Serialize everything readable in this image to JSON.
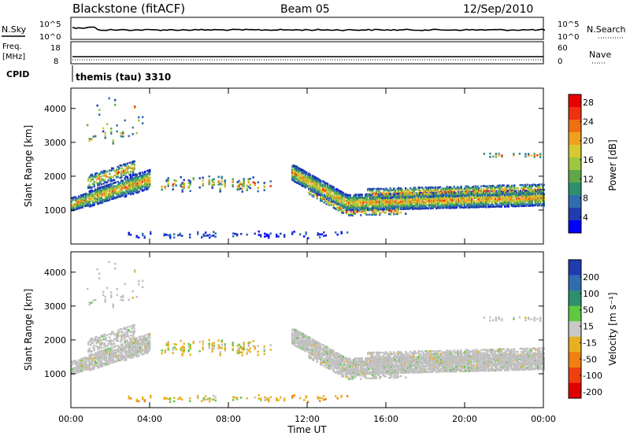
{
  "header": {
    "station": "Blackstone (fitACF)",
    "beam": "Beam 05",
    "date": "12/Sep/2010"
  },
  "top_panels": {
    "nsky_label": "N.Sky",
    "nsearch_label": "N.Search",
    "noise_ticks_left": [
      "10^5",
      "10^0"
    ],
    "noise_ticks_right": [
      "10^5",
      "10^0"
    ],
    "freq_label_1": "Freq.",
    "freq_label_2": "[MHz]",
    "freq_ticks": [
      "18",
      "8"
    ],
    "nave_label": "Nave",
    "nave_ticks": [
      "60",
      "0"
    ],
    "cpid_label": "CPID",
    "cpid_value": "themis (tau) 3310"
  },
  "chart_data": [
    {
      "type": "heatmap",
      "name": "power",
      "ylabel": "Slant Range [km]",
      "ylim": [
        0,
        4600
      ],
      "yticks": [
        "1000",
        "2000",
        "3000",
        "4000"
      ],
      "xlim": [
        0,
        24
      ],
      "colorbar": {
        "label": "Power [dB]",
        "ticks": [
          "4",
          "8",
          "12",
          "16",
          "20",
          "24",
          "28"
        ],
        "colors": [
          "#0000ff",
          "#1f3cb0",
          "#2f6db0",
          "#2e8f6e",
          "#5fa84a",
          "#9fc640",
          "#d8c832",
          "#f0a020",
          "#f07010",
          "#f03010",
          "#e80000"
        ]
      }
    },
    {
      "type": "heatmap",
      "name": "velocity",
      "ylabel": "Slant Range [km]",
      "ylim": [
        0,
        4600
      ],
      "yticks": [
        "1000",
        "2000",
        "3000",
        "4000"
      ],
      "xlim": [
        0,
        24
      ],
      "xlabel": "Time UT",
      "xticks": [
        "00:00",
        "04:00",
        "08:00",
        "12:00",
        "16:00",
        "20:00",
        "00:00"
      ],
      "colorbar": {
        "label": "Velocity [m s⁻¹]",
        "ticks": [
          "200",
          "100",
          "50",
          "15",
          "-15",
          "-50",
          "-100",
          "-200"
        ],
        "colors": [
          "#1f3cb0",
          "#2f6db0",
          "#2e8f6e",
          "#5fc840",
          "#c8c8c8",
          "#e8b020",
          "#f08010",
          "#f04010",
          "#e00000"
        ]
      }
    }
  ],
  "colors": {
    "ground_scatter": "#c0c0c0",
    "axis": "#000000"
  }
}
